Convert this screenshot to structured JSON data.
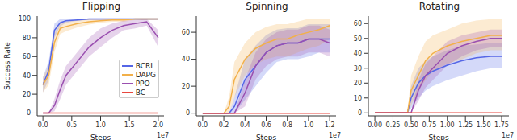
{
  "chart_data": [
    {
      "type": "line",
      "title": "Flipping",
      "xlabel": "Steps",
      "ylabel": "Success Rate",
      "annotations": [
        "1e7"
      ],
      "legend": "right",
      "grid": false,
      "xlim": [
        -0.1,
        2.1
      ],
      "xticks": [
        {
          "value": 0,
          "label": "0.0"
        },
        0.5,
        {
          "value": 1,
          "label": "1.0"
        },
        1.5,
        {
          "value": 2,
          "label": "2.0"
        }
      ],
      "ylim": [
        -3,
        103
      ],
      "yticks": [
        0,
        20,
        40,
        60,
        80,
        100
      ],
      "x": [
        0,
        0.1,
        0.2,
        0.3,
        0.4,
        0.6,
        0.8,
        1.0,
        1.2,
        1.4,
        1.6,
        1.8,
        2.0
      ],
      "series": [
        {
          "name": "BCRL",
          "color": "#5566e6",
          "values": [
            30,
            45,
            88,
            96,
            98,
            99,
            100,
            100,
            100,
            100,
            100,
            100,
            100
          ],
          "lower": [
            22,
            35,
            80,
            92,
            96,
            98,
            99,
            99,
            99,
            99,
            99,
            99,
            99
          ],
          "upper": [
            38,
            55,
            95,
            100,
            100,
            100,
            100,
            100,
            100,
            100,
            100,
            100,
            100
          ]
        },
        {
          "name": "DAPG",
          "color": "#f2b04a",
          "values": [
            30,
            40,
            75,
            90,
            92,
            95,
            97,
            98,
            99,
            99,
            100,
            100,
            100
          ],
          "lower": [
            22,
            30,
            65,
            84,
            87,
            91,
            94,
            96,
            97,
            97,
            99,
            99,
            99
          ],
          "upper": [
            38,
            50,
            85,
            96,
            97,
            99,
            100,
            100,
            100,
            100,
            100,
            100,
            100
          ]
        },
        {
          "name": "PPO",
          "color": "#9a4fb0",
          "values": [
            0,
            0,
            8,
            25,
            40,
            55,
            70,
            80,
            88,
            93,
            95,
            97,
            80
          ],
          "lower": [
            0,
            0,
            2,
            15,
            30,
            45,
            60,
            70,
            80,
            88,
            90,
            93,
            70
          ],
          "upper": [
            0,
            0,
            15,
            35,
            50,
            65,
            80,
            90,
            95,
            98,
            99,
            100,
            88
          ]
        },
        {
          "name": "BC",
          "color": "#e8473f",
          "values": [
            0,
            0,
            0,
            0,
            0,
            0,
            0,
            0,
            0,
            0,
            0,
            0,
            0
          ]
        }
      ]
    },
    {
      "type": "line",
      "title": "Spinning",
      "xlabel": "Steps",
      "annotations": [
        "1e7"
      ],
      "grid": false,
      "xlim": [
        -0.06,
        1.26
      ],
      "xticks": [
        {
          "value": 0,
          "label": "0.0"
        },
        0.2,
        0.4,
        0.6,
        0.8,
        {
          "value": 1,
          "label": "1.0"
        },
        1.2
      ],
      "ylim": [
        -2,
        72
      ],
      "yticks": [
        0,
        20,
        40,
        60
      ],
      "x": [
        0,
        0.2,
        0.25,
        0.3,
        0.4,
        0.5,
        0.6,
        0.7,
        0.8,
        0.9,
        1.0,
        1.1,
        1.2
      ],
      "series": [
        {
          "name": "BCRL",
          "color": "#5566e6",
          "values": [
            0,
            0,
            0,
            5,
            25,
            35,
            45,
            50,
            52,
            52,
            55,
            55,
            55
          ],
          "lower": [
            0,
            0,
            0,
            0,
            10,
            20,
            30,
            38,
            40,
            40,
            42,
            45,
            45
          ],
          "upper": [
            0,
            0,
            0,
            12,
            40,
            50,
            58,
            62,
            63,
            63,
            66,
            66,
            66
          ]
        },
        {
          "name": "DAPG",
          "color": "#f2b04a",
          "values": [
            0,
            0,
            5,
            25,
            40,
            48,
            52,
            55,
            55,
            58,
            60,
            62,
            65
          ],
          "lower": [
            0,
            0,
            0,
            12,
            28,
            36,
            40,
            42,
            42,
            45,
            48,
            50,
            55
          ],
          "upper": [
            0,
            0,
            12,
            38,
            52,
            60,
            64,
            66,
            66,
            68,
            70,
            70,
            70
          ]
        },
        {
          "name": "PPO",
          "color": "#9a4fb0",
          "values": [
            0,
            0,
            0,
            0,
            15,
            35,
            45,
            50,
            52,
            52,
            55,
            55,
            52
          ],
          "lower": [
            0,
            0,
            0,
            0,
            5,
            25,
            35,
            40,
            42,
            42,
            45,
            45,
            42
          ],
          "upper": [
            0,
            0,
            0,
            0,
            25,
            45,
            55,
            60,
            62,
            62,
            65,
            65,
            62
          ]
        },
        {
          "name": "BC",
          "color": "#e8473f",
          "values": [
            0,
            0,
            0,
            0,
            0,
            0,
            0,
            0,
            0,
            0,
            0,
            0,
            0
          ]
        }
      ]
    },
    {
      "type": "line",
      "title": "Rotating",
      "xlabel": "Steps",
      "annotations": [
        "1e7"
      ],
      "grid": false,
      "xlim": [
        -0.09,
        1.85
      ],
      "xticks": [
        {
          "value": 0,
          "label": "0.00"
        },
        0.25,
        {
          "value": 0.5,
          "label": "0.50"
        },
        0.75,
        {
          "value": 1,
          "label": "1.00"
        },
        1.25,
        {
          "value": 1.5,
          "label": "1.50"
        },
        1.75
      ],
      "ylim": [
        -2,
        65
      ],
      "yticks": [
        0,
        10,
        20,
        30,
        40,
        50,
        60
      ],
      "x": [
        0,
        0.25,
        0.45,
        0.5,
        0.6,
        0.7,
        0.8,
        1.0,
        1.2,
        1.4,
        1.6,
        1.75
      ],
      "series": [
        {
          "name": "BCRL",
          "color": "#5566e6",
          "values": [
            0,
            0,
            0,
            10,
            20,
            25,
            28,
            32,
            35,
            37,
            38,
            38
          ],
          "lower": [
            0,
            0,
            0,
            3,
            10,
            15,
            18,
            22,
            25,
            28,
            30,
            30
          ],
          "upper": [
            0,
            0,
            0,
            18,
            30,
            35,
            38,
            42,
            45,
            46,
            47,
            47
          ]
        },
        {
          "name": "DAPG",
          "color": "#f2b04a",
          "values": [
            0,
            0,
            0,
            15,
            25,
            35,
            40,
            45,
            48,
            50,
            52,
            52
          ],
          "lower": [
            0,
            0,
            0,
            5,
            15,
            22,
            28,
            33,
            36,
            40,
            42,
            42
          ],
          "upper": [
            0,
            0,
            0,
            25,
            38,
            48,
            52,
            56,
            60,
            62,
            63,
            63
          ]
        },
        {
          "name": "PPO",
          "color": "#9a4fb0",
          "values": [
            0,
            0,
            0,
            0,
            15,
            25,
            30,
            40,
            45,
            48,
            50,
            50
          ],
          "lower": [
            0,
            0,
            0,
            0,
            8,
            17,
            22,
            32,
            38,
            42,
            44,
            44
          ],
          "upper": [
            0,
            0,
            0,
            0,
            22,
            33,
            38,
            48,
            52,
            54,
            56,
            56
          ]
        },
        {
          "name": "BC",
          "color": "#e8473f",
          "values": [
            0,
            0,
            0,
            0,
            0,
            0,
            0,
            0,
            0,
            0,
            0,
            0
          ]
        }
      ]
    }
  ]
}
